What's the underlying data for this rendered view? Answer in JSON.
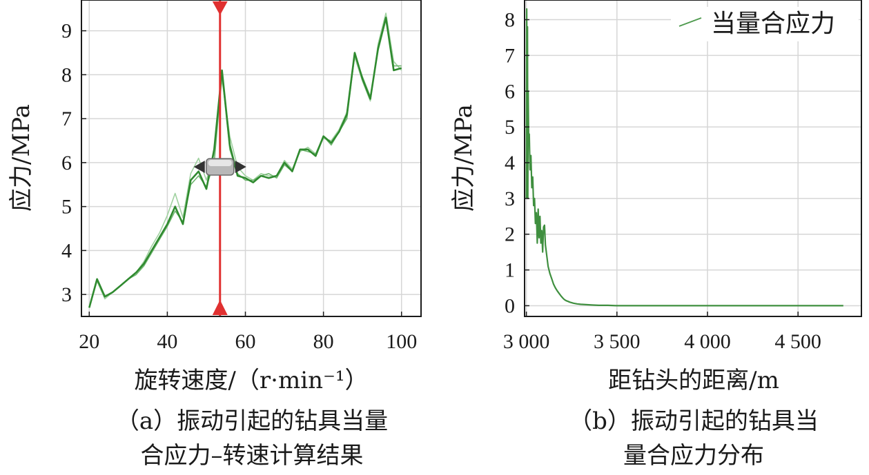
{
  "chart_data": [
    {
      "type": "line",
      "xlabel": "旋转速度/（r·min⁻¹）",
      "ylabel": "应力/MPa",
      "xlim": [
        18,
        105
      ],
      "ylim": [
        2.5,
        9.7
      ],
      "xticks": [
        "20",
        "40",
        "60",
        "80",
        "100"
      ],
      "yticks": [
        "3",
        "4",
        "5",
        "6",
        "7",
        "8",
        "9"
      ],
      "grid": true,
      "cursor_x": 53.5,
      "caption_line1": "（a）振动引起的钻具当量",
      "caption_line2": "合应力–转速计算结果",
      "series": [
        {
          "x": [
            20,
            22,
            24,
            26,
            28,
            30,
            32,
            34,
            36,
            38,
            40,
            42,
            44,
            46,
            48,
            50,
            52,
            54,
            56,
            58,
            60,
            62,
            64,
            66,
            68,
            70,
            72,
            74,
            76,
            78,
            80,
            82,
            84,
            86,
            88,
            90,
            92,
            94,
            96,
            98,
            100
          ],
          "values": [
            2.7,
            3.35,
            2.95,
            3.05,
            3.2,
            3.35,
            3.5,
            3.7,
            4.0,
            4.3,
            4.6,
            5.0,
            4.6,
            5.6,
            5.8,
            5.4,
            6.3,
            8.1,
            6.4,
            5.7,
            5.65,
            5.55,
            5.7,
            5.65,
            5.7,
            6.0,
            5.8,
            6.3,
            6.3,
            6.15,
            6.6,
            6.45,
            6.7,
            7.1,
            8.5,
            7.9,
            7.45,
            8.6,
            9.3,
            8.1,
            8.15
          ]
        },
        {
          "x": [
            20,
            22,
            24,
            26,
            28,
            30,
            32,
            34,
            36,
            38,
            40,
            42,
            44,
            46,
            48,
            50,
            52,
            54,
            56,
            58,
            60,
            62,
            64,
            66,
            68,
            70,
            72,
            74,
            76,
            78,
            80,
            82,
            84,
            86,
            88,
            90,
            92,
            94,
            96,
            98,
            100
          ],
          "values": [
            2.7,
            3.3,
            2.9,
            3.05,
            3.2,
            3.35,
            3.5,
            3.75,
            4.1,
            4.4,
            4.8,
            5.3,
            4.75,
            5.75,
            6.1,
            5.6,
            6.2,
            7.9,
            6.6,
            5.9,
            5.7,
            5.6,
            5.75,
            5.7,
            5.7,
            6.05,
            5.85,
            6.25,
            6.35,
            6.2,
            6.55,
            6.5,
            6.75,
            7.15,
            8.4,
            7.85,
            7.4,
            8.7,
            9.4,
            8.3,
            8.1
          ]
        },
        {
          "x": [
            20,
            22,
            24,
            26,
            28,
            30,
            32,
            34,
            36,
            38,
            40,
            42,
            44,
            46,
            48,
            50,
            52,
            54,
            56,
            58,
            60,
            62,
            64,
            66,
            68,
            70,
            72,
            74,
            76,
            78,
            80,
            82,
            84,
            86,
            88,
            90,
            92,
            94,
            96,
            98,
            100
          ],
          "values": [
            2.7,
            3.35,
            2.95,
            3.05,
            3.2,
            3.35,
            3.45,
            3.65,
            3.95,
            4.25,
            4.55,
            4.9,
            4.65,
            5.5,
            5.7,
            5.45,
            6.0,
            8.0,
            6.3,
            5.75,
            5.6,
            5.6,
            5.7,
            5.75,
            5.65,
            5.95,
            5.8,
            6.3,
            6.25,
            6.2,
            6.6,
            6.4,
            6.7,
            7.0,
            8.45,
            7.95,
            7.5,
            8.55,
            9.25,
            8.2,
            8.2
          ]
        }
      ]
    },
    {
      "type": "line",
      "xlabel": "距钻头的距离/m",
      "ylabel": "应力/MPa",
      "xlim": [
        2990,
        4850
      ],
      "ylim": [
        -0.3,
        8.55
      ],
      "xticks": [
        "3 000",
        "3 500",
        "4 000",
        "4 500"
      ],
      "xtick_values": [
        3000,
        3500,
        4000,
        4500
      ],
      "yticks": [
        "0",
        "1",
        "2",
        "3",
        "4",
        "5",
        "6",
        "7",
        "8"
      ],
      "grid": true,
      "legend_position": "top-right",
      "caption_line1": "（b）振动引起的钻具当",
      "caption_line2": "量合应力分布",
      "series": [
        {
          "name": "当量合应力",
          "x": [
            3000,
            3002,
            3004,
            3006,
            3008,
            3010,
            3013,
            3016,
            3020,
            3025,
            3030,
            3035,
            3040,
            3045,
            3050,
            3055,
            3060,
            3065,
            3070,
            3075,
            3080,
            3085,
            3090,
            3095,
            3100,
            3105,
            3110,
            3115,
            3120,
            3130,
            3140,
            3150,
            3160,
            3170,
            3180,
            3190,
            3200,
            3210,
            3220,
            3230,
            3240,
            3260,
            3280,
            3300,
            3330,
            3360,
            3400,
            3450,
            3500,
            3700,
            3900,
            4100,
            4300,
            4500,
            4700,
            4750
          ],
          "values": [
            3.0,
            8.3,
            5.5,
            7.8,
            3.0,
            6.0,
            4.5,
            4.8,
            3.8,
            4.2,
            3.3,
            3.6,
            2.8,
            3.0,
            2.3,
            2.6,
            1.75,
            2.7,
            1.9,
            2.5,
            1.75,
            2.1,
            1.5,
            2.2,
            2.25,
            1.7,
            1.5,
            1.3,
            1.1,
            0.9,
            0.75,
            0.6,
            0.5,
            0.42,
            0.35,
            0.28,
            0.22,
            0.17,
            0.14,
            0.12,
            0.1,
            0.07,
            0.05,
            0.04,
            0.03,
            0.02,
            0.01,
            0.01,
            0.0,
            0.0,
            0.0,
            0.0,
            0.0,
            0.0,
            0.0,
            0.0
          ]
        }
      ]
    }
  ]
}
